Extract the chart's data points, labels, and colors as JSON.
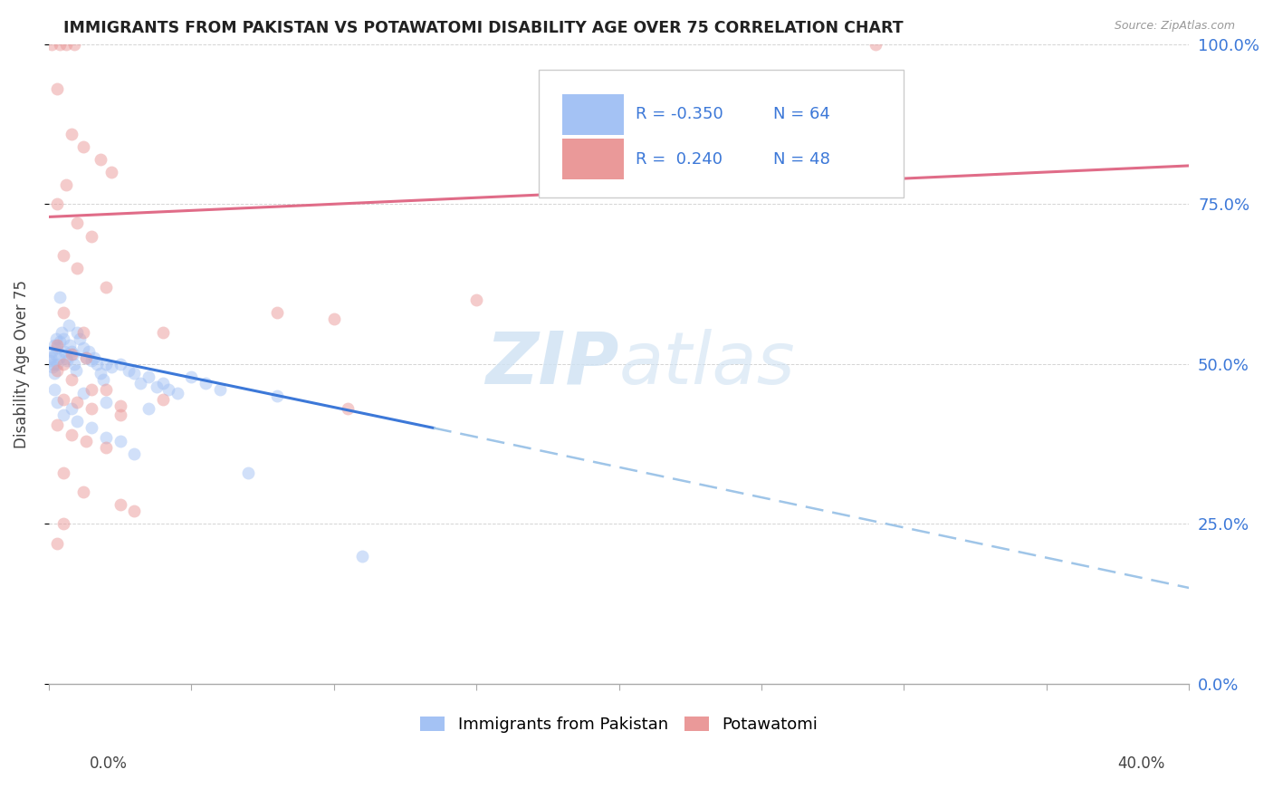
{
  "title": "IMMIGRANTS FROM PAKISTAN VS POTAWATOMI DISABILITY AGE OVER 75 CORRELATION CHART",
  "source": "Source: ZipAtlas.com",
  "ylabel": "Disability Age Over 75",
  "legend_label_blue": "Immigrants from Pakistan",
  "legend_label_pink": "Potawatomi",
  "blue_color": "#a4c2f4",
  "pink_color": "#ea9999",
  "trend_blue_solid_color": "#3c78d8",
  "trend_blue_dash_color": "#9fc5e8",
  "trend_pink_color": "#e06c88",
  "blue_scatter": [
    [
      0.05,
      50.5
    ],
    [
      0.08,
      51.0
    ],
    [
      0.1,
      52.0
    ],
    [
      0.12,
      49.5
    ],
    [
      0.15,
      50.0
    ],
    [
      0.18,
      48.5
    ],
    [
      0.2,
      53.0
    ],
    [
      0.22,
      51.5
    ],
    [
      0.25,
      54.0
    ],
    [
      0.28,
      50.0
    ],
    [
      0.3,
      52.5
    ],
    [
      0.35,
      51.0
    ],
    [
      0.4,
      53.5
    ],
    [
      0.45,
      55.0
    ],
    [
      0.5,
      54.0
    ],
    [
      0.55,
      52.0
    ],
    [
      0.6,
      51.0
    ],
    [
      0.65,
      50.5
    ],
    [
      0.7,
      56.0
    ],
    [
      0.75,
      53.0
    ],
    [
      0.8,
      52.0
    ],
    [
      0.85,
      51.5
    ],
    [
      0.9,
      50.0
    ],
    [
      0.95,
      49.0
    ],
    [
      1.0,
      55.0
    ],
    [
      1.1,
      54.0
    ],
    [
      1.2,
      52.5
    ],
    [
      1.3,
      51.0
    ],
    [
      1.4,
      52.0
    ],
    [
      1.5,
      50.5
    ],
    [
      1.6,
      51.0
    ],
    [
      1.7,
      50.0
    ],
    [
      1.8,
      48.5
    ],
    [
      1.9,
      47.5
    ],
    [
      2.0,
      50.0
    ],
    [
      2.2,
      49.5
    ],
    [
      2.5,
      50.0
    ],
    [
      2.8,
      49.0
    ],
    [
      3.0,
      48.5
    ],
    [
      3.2,
      47.0
    ],
    [
      3.5,
      48.0
    ],
    [
      3.8,
      46.5
    ],
    [
      4.0,
      47.0
    ],
    [
      4.2,
      46.0
    ],
    [
      4.5,
      45.5
    ],
    [
      5.0,
      48.0
    ],
    [
      5.5,
      47.0
    ],
    [
      6.0,
      46.0
    ],
    [
      0.3,
      44.0
    ],
    [
      0.5,
      42.0
    ],
    [
      0.8,
      43.0
    ],
    [
      1.0,
      41.0
    ],
    [
      1.5,
      40.0
    ],
    [
      2.0,
      38.5
    ],
    [
      2.5,
      38.0
    ],
    [
      3.0,
      36.0
    ],
    [
      7.0,
      33.0
    ],
    [
      0.4,
      60.5
    ],
    [
      0.2,
      46.0
    ],
    [
      1.2,
      45.5
    ],
    [
      2.0,
      44.0
    ],
    [
      3.5,
      43.0
    ],
    [
      8.0,
      45.0
    ],
    [
      11.0,
      20.0
    ]
  ],
  "pink_scatter": [
    [
      0.1,
      100.0
    ],
    [
      0.4,
      100.0
    ],
    [
      0.6,
      100.0
    ],
    [
      0.9,
      100.0
    ],
    [
      0.3,
      93.0
    ],
    [
      0.8,
      86.0
    ],
    [
      1.2,
      84.0
    ],
    [
      1.8,
      82.0
    ],
    [
      2.2,
      80.0
    ],
    [
      0.6,
      78.0
    ],
    [
      0.3,
      75.0
    ],
    [
      1.0,
      72.0
    ],
    [
      1.5,
      70.0
    ],
    [
      0.5,
      67.0
    ],
    [
      1.0,
      65.0
    ],
    [
      2.0,
      62.0
    ],
    [
      0.5,
      58.0
    ],
    [
      1.2,
      55.0
    ],
    [
      0.3,
      53.0
    ],
    [
      0.8,
      51.5
    ],
    [
      1.3,
      51.0
    ],
    [
      0.5,
      50.0
    ],
    [
      0.3,
      49.0
    ],
    [
      0.8,
      47.5
    ],
    [
      1.5,
      46.0
    ],
    [
      2.0,
      46.0
    ],
    [
      0.5,
      44.5
    ],
    [
      1.0,
      44.0
    ],
    [
      1.5,
      43.0
    ],
    [
      2.5,
      42.0
    ],
    [
      0.3,
      40.5
    ],
    [
      0.8,
      39.0
    ],
    [
      1.3,
      38.0
    ],
    [
      2.0,
      37.0
    ],
    [
      0.5,
      33.0
    ],
    [
      1.2,
      30.0
    ],
    [
      2.5,
      28.0
    ],
    [
      3.0,
      27.0
    ],
    [
      4.0,
      55.0
    ],
    [
      8.0,
      58.0
    ],
    [
      10.0,
      57.0
    ],
    [
      10.5,
      43.0
    ],
    [
      15.0,
      60.0
    ],
    [
      29.0,
      100.0
    ],
    [
      0.5,
      25.0
    ],
    [
      0.3,
      22.0
    ],
    [
      4.0,
      44.5
    ],
    [
      2.5,
      43.5
    ]
  ],
  "xlim": [
    0.0,
    40.0
  ],
  "ylim": [
    0.0,
    100.0
  ],
  "blue_trend_x0": 0.0,
  "blue_trend_y0": 52.5,
  "blue_solid_end_x": 13.5,
  "blue_solid_end_y": 40.0,
  "blue_trend_x1": 40.0,
  "blue_trend_y1": 15.0,
  "pink_trend_x0": 0.0,
  "pink_trend_y0": 73.0,
  "pink_trend_x1": 40.0,
  "pink_trend_y1": 81.0,
  "background_color": "#ffffff",
  "grid_color": "#d0d0d0",
  "right_label_color": "#3c78d8",
  "watermark_color": "#cfe2f3"
}
